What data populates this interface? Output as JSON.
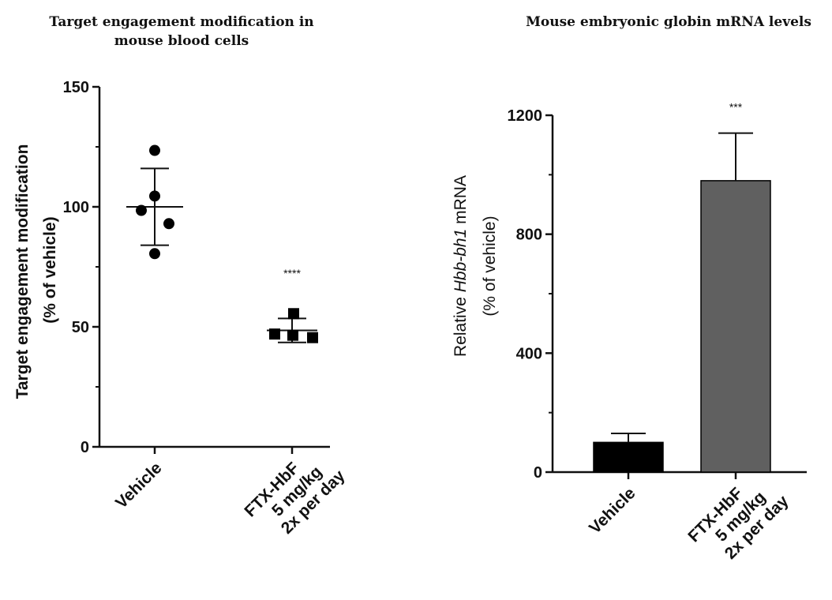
{
  "chart_data": [
    {
      "type": "scatter",
      "title_lines": [
        "Target engagement modification in",
        "mouse blood cells"
      ],
      "ylabel_lines": [
        "Target engagement modification",
        "(% of vehicle)"
      ],
      "ylim": [
        0,
        150
      ],
      "yticks": [
        0,
        50,
        100,
        150
      ],
      "categories": [
        {
          "lines": [
            "Vehicle"
          ]
        },
        {
          "lines": [
            "FTX-HbF",
            "5 mg/kg",
            "2x per day"
          ]
        }
      ],
      "series": [
        {
          "marker": "circle",
          "values": [
            123.5,
            104.5,
            98.5,
            93,
            80.5
          ],
          "mean": 100,
          "sd": 16
        },
        {
          "marker": "square",
          "values": [
            55.5,
            47,
            46.5,
            45.5
          ],
          "mean": 48.5,
          "sd": 5,
          "significance": "****"
        }
      ]
    },
    {
      "type": "bar",
      "title_lines": [
        "Mouse embryonic globin mRNA levels"
      ],
      "ylabel_lines": [
        {
          "parts": [
            {
              "text": "Relative "
            },
            {
              "text": "Hbb-bh1",
              "italic": true
            },
            {
              "text": " mRNA"
            }
          ]
        },
        {
          "parts": [
            {
              "text": "(% of vehicle)"
            }
          ]
        }
      ],
      "ylim": [
        0,
        1200
      ],
      "yticks": [
        0,
        400,
        800,
        1200
      ],
      "categories": [
        {
          "lines": [
            "Vehicle"
          ]
        },
        {
          "lines": [
            "FTX-HbF",
            "5 mg/kg",
            "2x per day"
          ]
        }
      ],
      "values": [
        100,
        980
      ],
      "errors": [
        130,
        1140
      ],
      "colors": [
        "#000000",
        "#606060"
      ],
      "significance": [
        "",
        "***"
      ]
    }
  ]
}
